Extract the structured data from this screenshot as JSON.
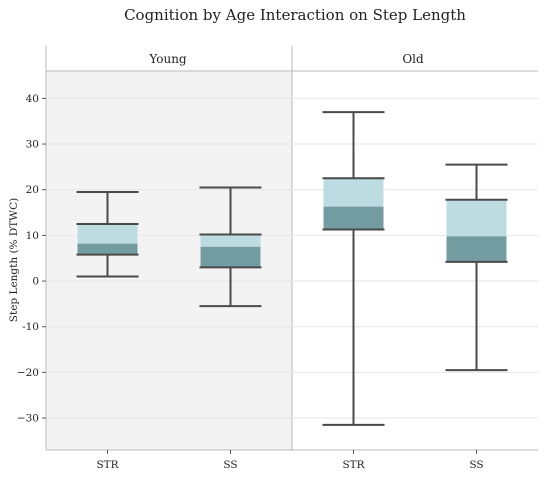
{
  "chart_data": {
    "type": "boxplot",
    "title": "Cognition by Age Interaction on Step Length",
    "ylabel": "Step Length (% DTWC)",
    "xlabel": "",
    "ylim": [
      -37,
      46
    ],
    "yticks": [
      -30,
      -20,
      -10,
      0,
      10,
      20,
      30,
      40
    ],
    "ytick_labels": [
      "−30",
      "−20",
      "-10",
      "0",
      "10",
      "20",
      "30",
      "40"
    ],
    "grid": true,
    "facets": [
      {
        "label": "Young",
        "shaded": true,
        "boxes": [
          {
            "category": "STR",
            "min": 1,
            "q1": 5.8,
            "median": 8.2,
            "q3": 12.5,
            "max": 19.5
          },
          {
            "category": "SS",
            "min": -5.5,
            "q1": 3.0,
            "median": 7.5,
            "q3": 10.2,
            "max": 20.5
          }
        ]
      },
      {
        "label": "Old",
        "shaded": false,
        "boxes": [
          {
            "category": "STR",
            "min": -31.5,
            "q1": 11.3,
            "median": 16.3,
            "q3": 22.5,
            "max": 37
          },
          {
            "category": "SS",
            "min": -19.5,
            "q1": 4.2,
            "median": 9.8,
            "q3": 17.8,
            "max": 25.5
          }
        ]
      }
    ],
    "colors": {
      "lower_box": "#739ca1",
      "upper_box": "#bcdce2",
      "whisker": "#4a4a4a",
      "facet_shade": "#f3f3f3",
      "grid": "#e6e6e6",
      "border": "#b8b8b8"
    }
  }
}
